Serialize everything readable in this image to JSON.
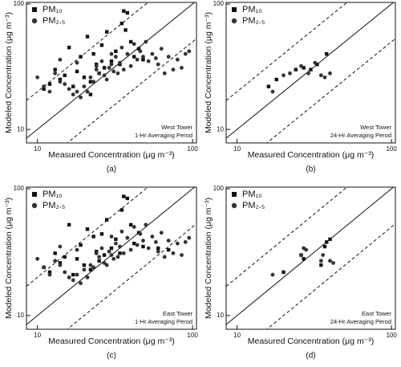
{
  "chart_data": [
    {
      "type": "scatter",
      "panel_label": "(a)",
      "x_label": "Measured Concentration (μg m⁻³)",
      "y_label": "Modeled Concentration (μg m⁻³)",
      "annotations": [
        "West Tower",
        "1-Hr Averaging Perod"
      ],
      "xscale": "log",
      "yscale": "log",
      "xlim": [
        8.5,
        106
      ],
      "ylim": [
        7.8,
        103
      ],
      "xticks": [
        10,
        100
      ],
      "yticks": [
        10,
        100
      ],
      "legend": "upper left",
      "reference_lines": [
        {
          "factor": 0.5,
          "style": "dashed"
        },
        {
          "factor": 1,
          "style": "solid"
        },
        {
          "factor": 2,
          "style": "dashed"
        }
      ],
      "series": [
        {
          "name": "PM₁₀",
          "marker": "square",
          "color": "#111111",
          "x": [
            11,
            12,
            13,
            14,
            15,
            16,
            17,
            18,
            19,
            20,
            21,
            22,
            23,
            24,
            25,
            26,
            27,
            28,
            30,
            32,
            34,
            36,
            38,
            40,
            42,
            45,
            48,
            35,
            37,
            22
          ],
          "y": [
            21,
            23,
            30,
            25,
            27,
            45,
            22,
            29,
            38,
            26,
            55,
            24,
            40,
            33,
            28,
            47,
            31,
            60,
            35,
            42,
            33,
            88,
            85,
            50,
            38,
            44,
            36,
            70,
            62,
            19
          ]
        },
        {
          "name": "PM₂.₅",
          "marker": "circle",
          "color": "#333333",
          "x": [
            10,
            11,
            12,
            13,
            14,
            15,
            16,
            17,
            18,
            19,
            20,
            21,
            22,
            23,
            24,
            25,
            26,
            27,
            28,
            29,
            30,
            31,
            32,
            33,
            34,
            35,
            36,
            38,
            40,
            42,
            44,
            46,
            48,
            50,
            52,
            55,
            58,
            60,
            63,
            66,
            70,
            75,
            80,
            85,
            90,
            95,
            14,
            18,
            24,
            30
          ],
          "y": [
            26,
            22,
            20,
            28,
            24,
            23,
            21,
            19,
            20,
            18,
            22,
            20,
            26,
            24,
            30,
            28,
            35,
            27,
            25,
            31,
            33,
            29,
            38,
            28,
            34,
            45,
            30,
            40,
            32,
            48,
            36,
            42,
            38,
            50,
            35,
            40,
            37,
            33,
            44,
            28,
            38,
            30,
            36,
            31,
            40,
            42,
            36,
            34,
            32,
            40
          ]
        }
      ]
    },
    {
      "type": "scatter",
      "panel_label": "(b)",
      "x_label": "Measured Concentration (μg m⁻³)",
      "y_label": "Modeled Concentration (μg m⁻³)",
      "annotations": [
        "West Tower",
        "24-Hr Averaging Perod"
      ],
      "xscale": "log",
      "yscale": "log",
      "xlim": [
        8.5,
        106
      ],
      "ylim": [
        7.8,
        103
      ],
      "xticks": [
        10,
        100
      ],
      "yticks": [
        10,
        100
      ],
      "legend": "upper left",
      "reference_lines": [
        {
          "factor": 0.5,
          "style": "dashed"
        },
        {
          "factor": 1,
          "style": "solid"
        },
        {
          "factor": 2,
          "style": "dashed"
        }
      ],
      "series": [
        {
          "name": "PM₁₀",
          "marker": "square",
          "color": "#111111",
          "x": [
            16,
            18,
            24,
            27,
            30,
            33,
            38
          ],
          "y": [
            22,
            25,
            30,
            31,
            30,
            33,
            40
          ]
        },
        {
          "name": "PM₂.₅",
          "marker": "circle",
          "color": "#333333",
          "x": [
            17,
            20,
            22,
            26,
            29,
            32,
            35,
            37,
            40
          ],
          "y": [
            20,
            27,
            28,
            32,
            28,
            34,
            27,
            26,
            28
          ]
        }
      ]
    },
    {
      "type": "scatter",
      "panel_label": "(c)",
      "x_label": "Measured Concentration (μg m⁻³)",
      "y_label": "Modeled Concentration (μg m⁻³)",
      "annotations": [
        "East Tower",
        "1-Hr Averaging Perod"
      ],
      "xscale": "log",
      "yscale": "log",
      "xlim": [
        8.5,
        106
      ],
      "ylim": [
        7.8,
        103
      ],
      "xticks": [
        10,
        100
      ],
      "yticks": [
        10,
        100
      ],
      "legend": "upper left",
      "reference_lines": [
        {
          "factor": 0.5,
          "style": "dashed"
        },
        {
          "factor": 1,
          "style": "solid"
        },
        {
          "factor": 2,
          "style": "dashed"
        }
      ],
      "series": [
        {
          "name": "PM₁₀",
          "marker": "square",
          "color": "#111111",
          "x": [
            11,
            12,
            13,
            14,
            15,
            16,
            17,
            18,
            19,
            20,
            21,
            22,
            23,
            24,
            25,
            26,
            27,
            28,
            30,
            32,
            34,
            36,
            38,
            40,
            42,
            45,
            48,
            35,
            60,
            70
          ],
          "y": [
            24,
            22,
            31,
            26,
            29,
            52,
            21,
            28,
            36,
            25,
            48,
            23,
            42,
            32,
            27,
            44,
            30,
            57,
            34,
            40,
            31,
            87,
            84,
            52,
            37,
            45,
            35,
            68,
            34,
            33
          ]
        },
        {
          "name": "PM₂.₅",
          "marker": "circle",
          "color": "#333333",
          "x": [
            10,
            11,
            12,
            13,
            14,
            15,
            16,
            17,
            18,
            19,
            20,
            21,
            22,
            23,
            24,
            25,
            26,
            27,
            28,
            29,
            30,
            31,
            32,
            33,
            34,
            35,
            36,
            38,
            40,
            42,
            44,
            46,
            48,
            50,
            52,
            55,
            58,
            60,
            63,
            66,
            70,
            75,
            80,
            85,
            90,
            95,
            14,
            18,
            24,
            30
          ],
          "y": [
            28,
            24,
            21,
            27,
            25,
            22,
            20,
            19,
            21,
            18,
            23,
            20,
            25,
            24,
            31,
            29,
            34,
            26,
            25,
            32,
            30,
            28,
            37,
            29,
            35,
            46,
            31,
            41,
            33,
            50,
            36,
            44,
            39,
            52,
            34,
            42,
            38,
            32,
            45,
            29,
            39,
            31,
            37,
            30,
            38,
            41,
            35,
            33,
            31,
            42
          ]
        }
      ]
    },
    {
      "type": "scatter",
      "panel_label": "(d)",
      "x_label": "Measured Concentration (μg m⁻³)",
      "y_label": "Modeled Concentration (μg m⁻³)",
      "annotations": [
        "East Tower",
        "24-Hr Averaging Perod"
      ],
      "xscale": "log",
      "yscale": "log",
      "xlim": [
        8.5,
        106
      ],
      "ylim": [
        7.8,
        103
      ],
      "xticks": [
        10,
        100
      ],
      "yticks": [
        10,
        100
      ],
      "legend": "upper left",
      "reference_lines": [
        {
          "factor": 0.5,
          "style": "dashed"
        },
        {
          "factor": 1,
          "style": "solid"
        },
        {
          "factor": 2,
          "style": "dashed"
        }
      ],
      "series": [
        {
          "name": "PM₁₀",
          "marker": "square",
          "color": "#111111",
          "x": [
            20,
            26,
            27,
            35,
            37,
            38,
            40
          ],
          "y": [
            22,
            30,
            28,
            25,
            35,
            38,
            40
          ]
        },
        {
          "name": "PM₂.₅",
          "marker": "circle",
          "color": "#333333",
          "x": [
            17,
            26,
            27,
            28,
            35,
            36,
            40,
            42
          ],
          "y": [
            21,
            30,
            34,
            33,
            27,
            30,
            27,
            26
          ]
        }
      ]
    }
  ]
}
